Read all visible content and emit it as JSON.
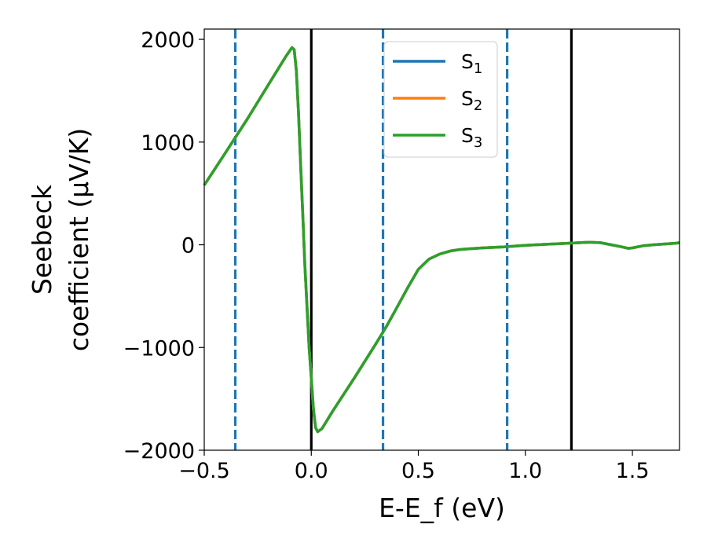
{
  "chart_data": {
    "type": "line",
    "title": "",
    "xlabel": "E-E_f (eV)",
    "ylabel_lines": [
      "Seebeck",
      "coefficient  (μV/K)"
    ],
    "xlim": [
      -0.5,
      1.72
    ],
    "ylim": [
      -2000,
      2100
    ],
    "xticks": [
      -0.5,
      0.0,
      0.5,
      1.0,
      1.5
    ],
    "xtick_labels": [
      "−0.5",
      "0.0",
      "0.5",
      "1.0",
      "1.5"
    ],
    "yticks": [
      -2000,
      -1000,
      0,
      1000,
      2000
    ],
    "ytick_labels": [
      "−2000",
      "−1000",
      "0",
      "1000",
      "2000"
    ],
    "legend_placement": "top-center",
    "grid": false,
    "vertical_lines": [
      {
        "x": -0.355,
        "style": "dashed",
        "color": "#1f77b4"
      },
      {
        "x": 0.0,
        "style": "solid",
        "color": "#000000"
      },
      {
        "x": 0.335,
        "style": "dashed",
        "color": "#1f77b4"
      },
      {
        "x": 0.915,
        "style": "dashed",
        "color": "#1f77b4"
      },
      {
        "x": 1.215,
        "style": "solid",
        "color": "#000000"
      }
    ],
    "series": [
      {
        "name": "S_1",
        "legend_base": "S",
        "legend_sub": "1",
        "color": "#1f77b4",
        "x": [
          -0.5,
          -0.4,
          -0.3,
          -0.2,
          -0.12,
          -0.09,
          -0.08,
          -0.07,
          -0.06,
          -0.05,
          -0.04,
          -0.03,
          -0.02,
          -0.01,
          0.0,
          0.01,
          0.02,
          0.03,
          0.05,
          0.1,
          0.2,
          0.3,
          0.35,
          0.4,
          0.45,
          0.5,
          0.55,
          0.6,
          0.65,
          0.7,
          0.8,
          0.9,
          1.0,
          1.1,
          1.2,
          1.3,
          1.35,
          1.4,
          1.45,
          1.48,
          1.5,
          1.55,
          1.6,
          1.7,
          1.72
        ],
        "y": [
          580,
          900,
          1220,
          1560,
          1830,
          1920,
          1900,
          1700,
          1300,
          800,
          300,
          -200,
          -600,
          -1000,
          -1300,
          -1600,
          -1780,
          -1820,
          -1790,
          -1620,
          -1300,
          -970,
          -800,
          -610,
          -420,
          -240,
          -140,
          -90,
          -60,
          -45,
          -30,
          -20,
          -5,
          5,
          15,
          25,
          20,
          0,
          -20,
          -35,
          -30,
          -10,
          0,
          15,
          20
        ]
      },
      {
        "name": "S_2",
        "legend_base": "S",
        "legend_sub": "2",
        "color": "#ff7f0e",
        "x": [
          -0.5,
          -0.4,
          -0.3,
          -0.2,
          -0.12,
          -0.09,
          -0.08,
          -0.07,
          -0.06,
          -0.05,
          -0.04,
          -0.03,
          -0.02,
          -0.01,
          0.0,
          0.01,
          0.02,
          0.03,
          0.05,
          0.1,
          0.2,
          0.3,
          0.35,
          0.4,
          0.45,
          0.5,
          0.55,
          0.6,
          0.65,
          0.7,
          0.8,
          0.9,
          1.0,
          1.1,
          1.2,
          1.3,
          1.35,
          1.4,
          1.45,
          1.48,
          1.5,
          1.55,
          1.6,
          1.7,
          1.72
        ],
        "y": [
          580,
          900,
          1220,
          1560,
          1830,
          1920,
          1900,
          1700,
          1300,
          800,
          300,
          -200,
          -600,
          -1000,
          -1300,
          -1600,
          -1780,
          -1820,
          -1790,
          -1620,
          -1300,
          -970,
          -800,
          -610,
          -420,
          -240,
          -140,
          -90,
          -60,
          -45,
          -30,
          -20,
          -5,
          5,
          15,
          25,
          20,
          0,
          -20,
          -35,
          -30,
          -10,
          0,
          15,
          20
        ]
      },
      {
        "name": "S_3",
        "legend_base": "S",
        "legend_sub": "3",
        "color": "#2ca02c",
        "x": [
          -0.5,
          -0.4,
          -0.3,
          -0.2,
          -0.12,
          -0.09,
          -0.08,
          -0.07,
          -0.06,
          -0.05,
          -0.04,
          -0.03,
          -0.02,
          -0.01,
          0.0,
          0.01,
          0.02,
          0.03,
          0.05,
          0.1,
          0.2,
          0.3,
          0.35,
          0.4,
          0.45,
          0.5,
          0.55,
          0.6,
          0.65,
          0.7,
          0.8,
          0.9,
          1.0,
          1.1,
          1.2,
          1.3,
          1.35,
          1.4,
          1.45,
          1.48,
          1.5,
          1.55,
          1.6,
          1.7,
          1.72
        ],
        "y": [
          580,
          900,
          1220,
          1560,
          1830,
          1920,
          1900,
          1700,
          1300,
          800,
          300,
          -200,
          -600,
          -1000,
          -1300,
          -1600,
          -1780,
          -1820,
          -1790,
          -1620,
          -1300,
          -970,
          -800,
          -610,
          -420,
          -240,
          -140,
          -90,
          -60,
          -45,
          -30,
          -20,
          -5,
          5,
          15,
          25,
          20,
          0,
          -20,
          -35,
          -30,
          -10,
          0,
          15,
          20
        ]
      }
    ]
  }
}
